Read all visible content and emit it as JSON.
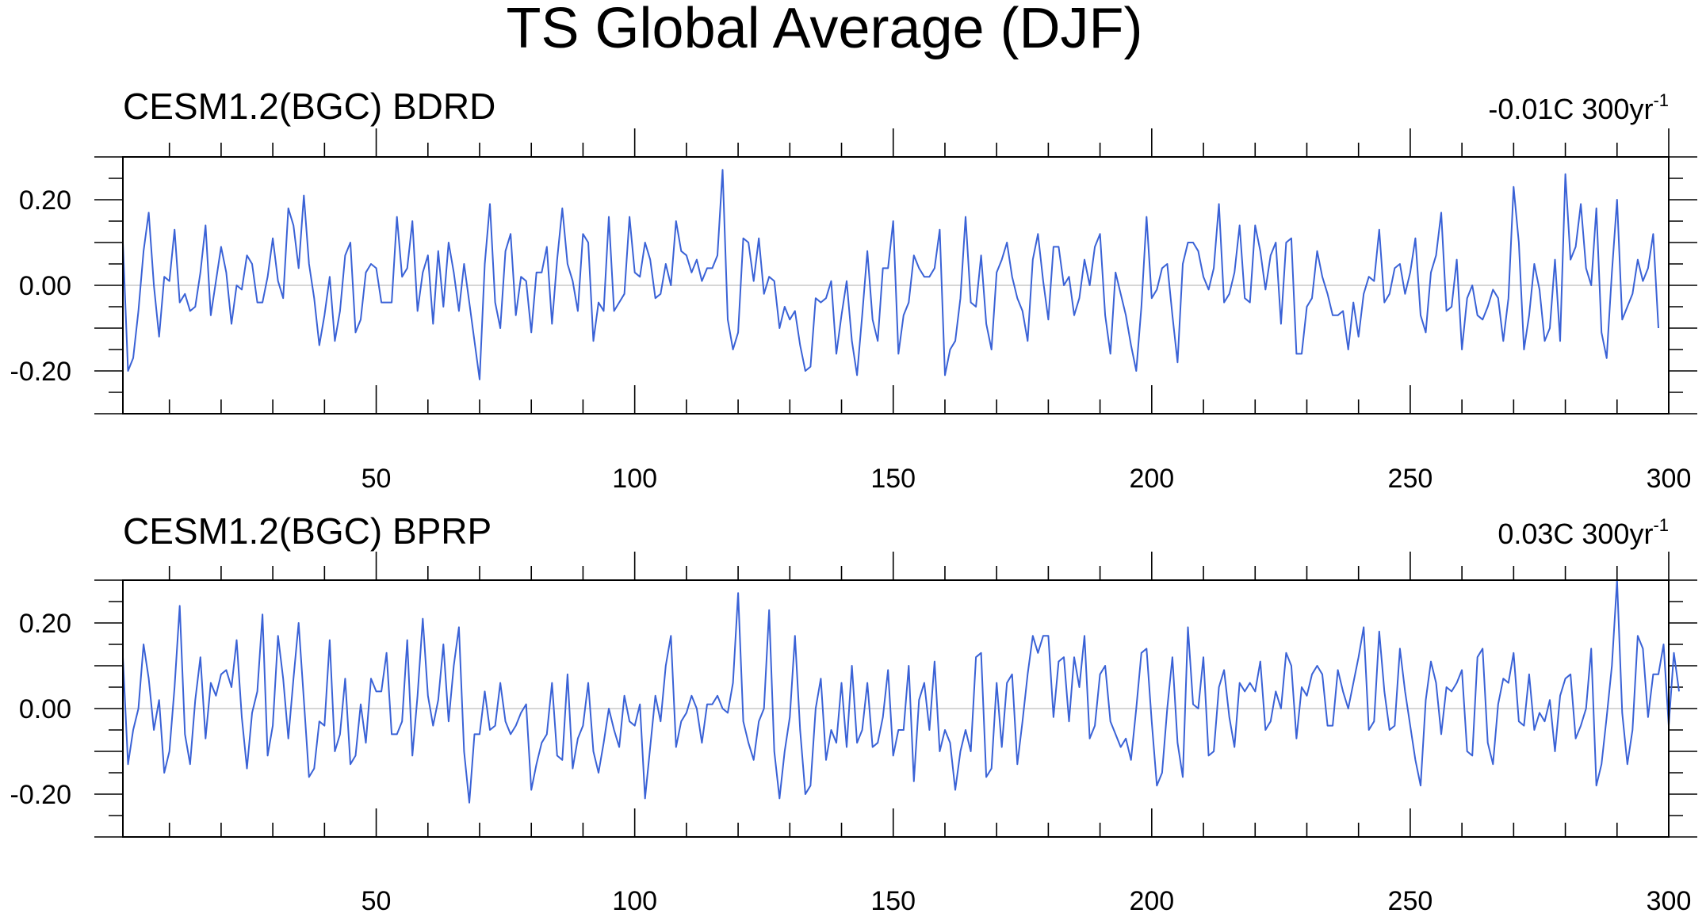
{
  "title": "TS Global Average (DJF)",
  "chart_data": [
    {
      "type": "line",
      "title": "CESM1.2(BGC) BDRD",
      "trend_value": "-0.01C 300yr",
      "trend_exponent": "-1",
      "xlabel": "",
      "ylabel": "",
      "xlim": [
        1,
        300
      ],
      "ylim": [
        -0.3,
        0.3
      ],
      "x_ticks": [
        "50",
        "100",
        "150",
        "200",
        "250",
        "300"
      ],
      "y_ticks": [
        "0.20",
        "0.00",
        "-0.20"
      ],
      "grid": false,
      "reference_line": 0,
      "series": [
        {
          "color": "#3a62d6",
          "values": [
            0.1,
            -0.2,
            -0.17,
            -0.06,
            0.08,
            0.17,
            0.0,
            -0.12,
            0.02,
            0.01,
            0.13,
            -0.04,
            -0.02,
            -0.06,
            -0.05,
            0.03,
            0.14,
            -0.07,
            0.01,
            0.09,
            0.03,
            -0.09,
            0.0,
            -0.01,
            0.07,
            0.05,
            -0.04,
            -0.04,
            0.02,
            0.11,
            0.01,
            -0.03,
            0.18,
            0.14,
            0.04,
            0.21,
            0.05,
            -0.03,
            -0.14,
            -0.07,
            0.02,
            -0.13,
            -0.06,
            0.07,
            0.1,
            -0.11,
            -0.08,
            0.03,
            0.05,
            0.04,
            -0.04,
            -0.04,
            -0.04,
            0.16,
            0.02,
            0.04,
            0.15,
            -0.06,
            0.03,
            0.07,
            -0.09,
            0.08,
            -0.05,
            0.1,
            0.03,
            -0.06,
            0.05,
            -0.04,
            -0.13,
            -0.22,
            0.05,
            0.19,
            -0.04,
            -0.1,
            0.08,
            0.12,
            -0.07,
            0.02,
            0.01,
            -0.11,
            0.03,
            0.03,
            0.09,
            -0.09,
            0.06,
            0.18,
            0.05,
            0.01,
            -0.06,
            0.12,
            0.1,
            -0.13,
            -0.04,
            -0.06,
            0.16,
            -0.06,
            -0.04,
            -0.02,
            0.16,
            0.03,
            0.02,
            0.1,
            0.06,
            -0.03,
            -0.02,
            0.05,
            0.0,
            0.15,
            0.08,
            0.07,
            0.03,
            0.06,
            0.01,
            0.04,
            0.04,
            0.07,
            0.27,
            -0.08,
            -0.15,
            -0.11,
            0.11,
            0.1,
            0.01,
            0.11,
            -0.02,
            0.02,
            0.01,
            -0.1,
            -0.05,
            -0.08,
            -0.06,
            -0.14,
            -0.2,
            -0.19,
            -0.03,
            -0.04,
            -0.03,
            0.01,
            -0.16,
            -0.07,
            0.01,
            -0.13,
            -0.21,
            -0.07,
            0.08,
            -0.08,
            -0.13,
            0.04,
            0.04,
            0.15,
            -0.16,
            -0.07,
            -0.04,
            0.07,
            0.04,
            0.02,
            0.02,
            0.04,
            0.13,
            -0.21,
            -0.15,
            -0.13,
            -0.03,
            0.16,
            -0.04,
            -0.05,
            0.07,
            -0.09,
            -0.15,
            0.03,
            0.06,
            0.1,
            0.02,
            -0.03,
            -0.06,
            -0.13,
            0.06,
            0.12,
            0.01,
            -0.08,
            0.09,
            0.09,
            0.0,
            0.02,
            -0.07,
            -0.03,
            0.06,
            0.0,
            0.09,
            0.12,
            -0.07,
            -0.16,
            0.03,
            -0.02,
            -0.07,
            -0.14,
            -0.2,
            -0.05,
            0.16,
            -0.03,
            -0.01,
            0.04,
            0.05,
            -0.07,
            -0.18,
            0.05,
            0.1,
            0.1,
            0.08,
            0.02,
            -0.01,
            0.04,
            0.19,
            -0.04,
            -0.02,
            0.03,
            0.14,
            -0.03,
            -0.04,
            0.14,
            0.08,
            -0.01,
            0.07,
            0.1,
            -0.09,
            0.1,
            0.11,
            -0.16,
            -0.16,
            -0.05,
            -0.03,
            0.08,
            0.02,
            -0.02,
            -0.07,
            -0.07,
            -0.06,
            -0.15,
            -0.04,
            -0.12,
            -0.02,
            0.02,
            0.01,
            0.13,
            -0.04,
            -0.02,
            0.04,
            0.05,
            -0.02,
            0.03,
            0.11,
            -0.07,
            -0.11,
            0.03,
            0.07,
            0.17,
            -0.06,
            -0.05,
            0.06,
            -0.15,
            -0.03,
            0.0,
            -0.07,
            -0.08,
            -0.05,
            -0.01,
            -0.03,
            -0.13,
            -0.03,
            0.23,
            0.1,
            -0.15,
            -0.07,
            0.05,
            -0.01,
            -0.13,
            -0.1,
            0.06,
            -0.13,
            0.26,
            0.06,
            0.09,
            0.19,
            0.04,
            0.0,
            0.18,
            -0.11,
            -0.17,
            0.03,
            0.2,
            -0.08,
            -0.05,
            -0.02,
            0.06,
            0.01,
            0.04,
            0.12,
            -0.1
          ]
        }
      ]
    },
    {
      "type": "line",
      "title": "CESM1.2(BGC) BPRP",
      "trend_value": "0.03C 300yr",
      "trend_exponent": "-1",
      "xlabel": "",
      "ylabel": "",
      "xlim": [
        1,
        300
      ],
      "ylim": [
        -0.3,
        0.3
      ],
      "x_ticks": [
        "50",
        "100",
        "150",
        "200",
        "250",
        "300"
      ],
      "y_ticks": [
        "0.20",
        "0.00",
        "-0.20"
      ],
      "grid": false,
      "reference_line": 0,
      "series": [
        {
          "color": "#3a62d6",
          "values": [
            0.12,
            -0.13,
            -0.05,
            0.0,
            0.15,
            0.07,
            -0.05,
            0.02,
            -0.15,
            -0.1,
            0.05,
            0.24,
            -0.06,
            -0.13,
            0.02,
            0.12,
            -0.07,
            0.06,
            0.03,
            0.08,
            0.09,
            0.05,
            0.16,
            -0.02,
            -0.14,
            -0.01,
            0.04,
            0.22,
            -0.11,
            -0.04,
            0.17,
            0.07,
            -0.07,
            0.07,
            0.2,
            0.02,
            -0.16,
            -0.14,
            -0.03,
            -0.04,
            0.16,
            -0.1,
            -0.06,
            0.07,
            -0.13,
            -0.11,
            0.01,
            -0.08,
            0.07,
            0.04,
            0.04,
            0.13,
            -0.06,
            -0.06,
            -0.03,
            0.16,
            -0.11,
            0.03,
            0.21,
            0.03,
            -0.04,
            0.02,
            0.15,
            -0.03,
            0.1,
            0.19,
            -0.1,
            -0.22,
            -0.06,
            -0.06,
            0.04,
            -0.05,
            -0.04,
            0.06,
            -0.03,
            -0.06,
            -0.04,
            -0.01,
            0.01,
            -0.19,
            -0.13,
            -0.08,
            -0.06,
            0.06,
            -0.11,
            -0.12,
            0.08,
            -0.14,
            -0.07,
            -0.04,
            0.06,
            -0.1,
            -0.15,
            -0.08,
            0.0,
            -0.05,
            -0.09,
            0.03,
            -0.03,
            -0.04,
            0.01,
            -0.21,
            -0.09,
            0.03,
            -0.03,
            0.1,
            0.17,
            -0.09,
            -0.03,
            -0.01,
            0.03,
            0.0,
            -0.08,
            0.01,
            0.01,
            0.03,
            0.0,
            -0.01,
            0.06,
            0.27,
            -0.03,
            -0.08,
            -0.12,
            -0.03,
            0.0,
            0.23,
            -0.1,
            -0.21,
            -0.1,
            -0.02,
            0.17,
            -0.05,
            -0.2,
            -0.18,
            0.0,
            0.07,
            -0.12,
            -0.05,
            -0.08,
            0.06,
            -0.09,
            0.1,
            -0.08,
            -0.05,
            0.06,
            -0.09,
            -0.08,
            -0.02,
            0.09,
            -0.11,
            -0.05,
            -0.05,
            0.1,
            -0.17,
            0.02,
            0.06,
            -0.05,
            0.11,
            -0.1,
            -0.05,
            -0.08,
            -0.19,
            -0.1,
            -0.05,
            -0.1,
            0.12,
            0.13,
            -0.16,
            -0.14,
            0.06,
            -0.09,
            0.06,
            0.08,
            -0.13,
            -0.03,
            0.08,
            0.17,
            0.13,
            0.17,
            0.17,
            -0.02,
            0.11,
            0.12,
            -0.03,
            0.12,
            0.05,
            0.17,
            -0.07,
            -0.04,
            0.08,
            0.1,
            -0.03,
            -0.06,
            -0.09,
            -0.07,
            -0.12,
            0.0,
            0.13,
            0.14,
            -0.03,
            -0.18,
            -0.15,
            0.0,
            0.12,
            -0.08,
            -0.16,
            0.19,
            0.01,
            0.0,
            0.12,
            -0.11,
            -0.1,
            0.05,
            0.09,
            -0.02,
            -0.09,
            0.06,
            0.04,
            0.06,
            0.04,
            0.11,
            -0.05,
            -0.03,
            0.04,
            0.0,
            0.13,
            0.1,
            -0.07,
            0.05,
            0.03,
            0.08,
            0.1,
            0.08,
            -0.04,
            -0.04,
            0.09,
            0.04,
            0.0,
            0.06,
            0.12,
            0.19,
            -0.05,
            -0.03,
            0.18,
            0.04,
            -0.05,
            -0.04,
            0.14,
            0.04,
            -0.04,
            -0.12,
            -0.18,
            0.02,
            0.11,
            0.06,
            -0.06,
            0.05,
            0.04,
            0.06,
            0.09,
            -0.1,
            -0.11,
            0.12,
            0.14,
            -0.08,
            -0.13,
            0.01,
            0.07,
            0.06,
            0.13,
            -0.03,
            -0.04,
            0.08,
            -0.05,
            -0.01,
            -0.03,
            0.02,
            -0.1,
            0.03,
            0.07,
            0.08,
            -0.07,
            -0.04,
            0.0,
            0.14,
            -0.18,
            -0.13,
            -0.02,
            0.1,
            0.3,
            -0.01,
            -0.13,
            -0.05,
            0.17,
            0.14,
            -0.02,
            0.08,
            0.08,
            0.15,
            -0.04,
            0.13,
            0.04
          ]
        }
      ]
    }
  ]
}
